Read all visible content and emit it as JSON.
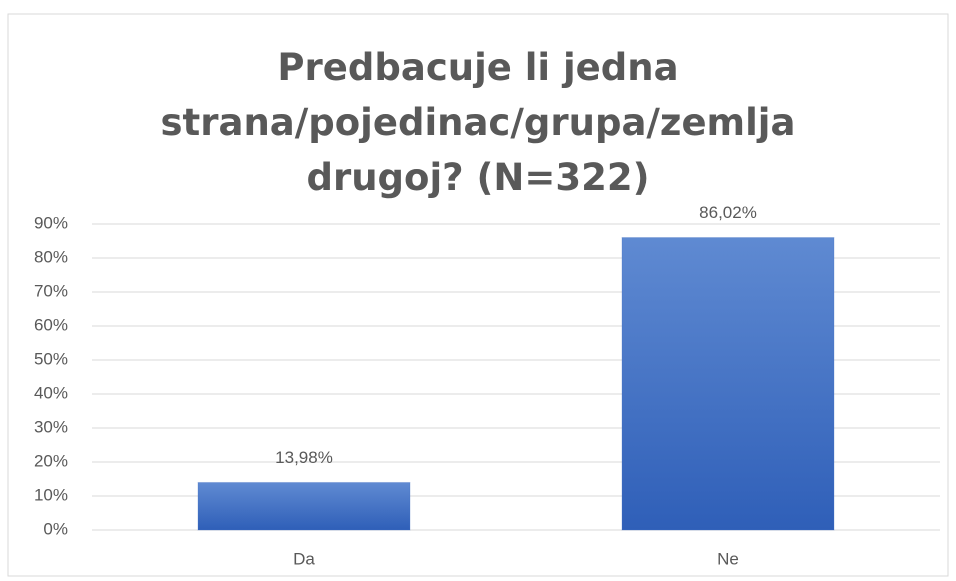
{
  "chart_data": {
    "type": "bar",
    "title": "Predbacuje li jedna strana/pojedinac/grupa/zemlja drugoj? (N=322)",
    "categories": [
      "Da",
      "Ne"
    ],
    "values": [
      13.98,
      86.02
    ],
    "value_labels": [
      "13,98%",
      "86,02%"
    ],
    "color": "#4472c4",
    "ylim": [
      0,
      90
    ],
    "yticks": [
      {
        "value": 0,
        "label": "0%"
      },
      {
        "value": 10,
        "label": "10%"
      },
      {
        "value": 20,
        "label": "20%"
      },
      {
        "value": 30,
        "label": "30%"
      },
      {
        "value": 40,
        "label": "40%"
      },
      {
        "value": 50,
        "label": "50%"
      },
      {
        "value": 60,
        "label": "60%"
      },
      {
        "value": 70,
        "label": "70%"
      },
      {
        "value": 80,
        "label": "80%"
      },
      {
        "value": 90,
        "label": "90%"
      }
    ],
    "grid": true
  }
}
